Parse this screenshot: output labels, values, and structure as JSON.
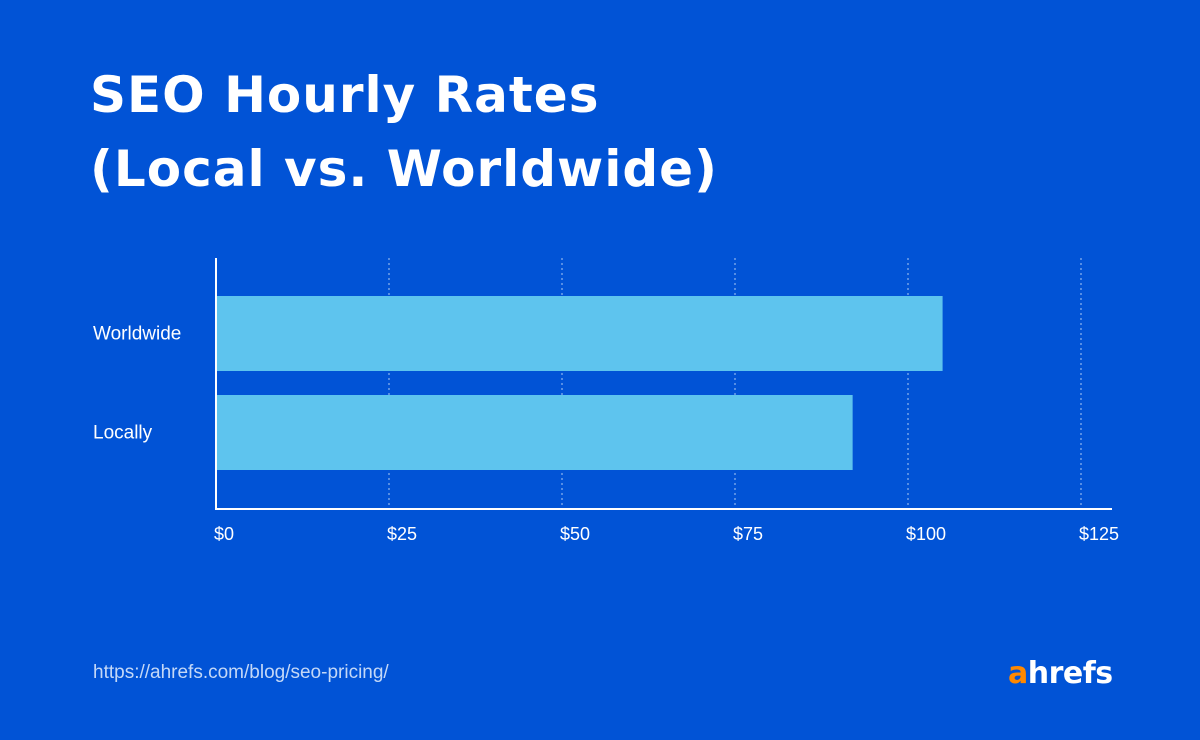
{
  "title_lines": [
    "SEO Hourly Rates",
    "(Local vs. Worldwide)"
  ],
  "source_url": "https://ahrefs.com/blog/seo-pricing/",
  "brand": {
    "first_letter": "a",
    "rest": "hrefs",
    "accent_color": "#ff8800"
  },
  "colors": {
    "background": "#0153d6",
    "bar": "#5ec4ee",
    "text": "#ffffff"
  },
  "chart_data": {
    "type": "bar",
    "orientation": "horizontal",
    "categories": [
      "Worldwide",
      "Locally"
    ],
    "values": [
      105,
      92
    ],
    "xlim": [
      0,
      125
    ],
    "x_ticks": [
      "$0",
      "$25",
      "$50",
      "$75",
      "$100",
      "$125"
    ],
    "grid": "vertical dotted",
    "legend": "none"
  }
}
